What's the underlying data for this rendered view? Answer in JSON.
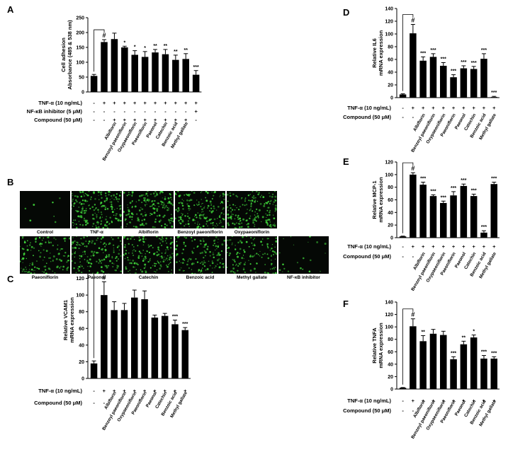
{
  "panels": {
    "A": "A",
    "B": "B",
    "C": "C",
    "D": "D",
    "E": "E",
    "F": "F"
  },
  "chart_data": [
    {
      "id": "A",
      "type": "bar",
      "ylabel": "Cell adhesion",
      "ylabel2": "Absorbance (485 & 538 nm)",
      "ylim": [
        0,
        250
      ],
      "yticks": [
        0,
        50,
        100,
        150,
        200,
        250
      ],
      "categories": [
        "",
        "",
        "Albiflorin",
        "Benzoyl paeoniflorin",
        "Oxypaeoniflorin",
        "Paeoniflorin",
        "Paeonol",
        "Catechin",
        "Benzoic acid",
        "Methyl gallate",
        ""
      ],
      "values": [
        54,
        168,
        178,
        150,
        125,
        118,
        133,
        127,
        108,
        111,
        58
      ],
      "errors": [
        5,
        8,
        20,
        4,
        14,
        18,
        10,
        16,
        16,
        18,
        14
      ],
      "stars": [
        "",
        "#",
        "",
        "*",
        "*",
        "*",
        "**",
        "**",
        "**",
        "**",
        "***"
      ],
      "rows": [
        {
          "label": "TNF-α (10 ng/mL)",
          "marks": [
            "-",
            "+",
            "+",
            "+",
            "+",
            "+",
            "+",
            "+",
            "+",
            "+",
            "+"
          ]
        },
        {
          "label": "NF-κB inhibitor (5 μM)",
          "marks": [
            "-",
            "-",
            "-",
            "-",
            "-",
            "-",
            "-",
            "-",
            "-",
            "-",
            "+"
          ]
        },
        {
          "label": "Compound (50 μM)",
          "marks": [
            "-",
            "-",
            "+",
            "+",
            "+",
            "+",
            "+",
            "+",
            "+",
            "+",
            "-"
          ]
        }
      ]
    },
    {
      "id": "C",
      "type": "bar",
      "ylabel": "Relative VCAM1",
      "ylabel2": "mRNA expression",
      "ylim": [
        0,
        140
      ],
      "yticks": [
        0,
        20,
        40,
        60,
        80,
        100,
        120,
        140
      ],
      "categories": [
        "",
        "",
        "Albiflorin",
        "Benzoyl paeoniflorin",
        "Oxypaeoniflorin",
        "Paeoniflorin",
        "Paeonol",
        "Catechin",
        "Benzoic acid",
        "Methyl gallate"
      ],
      "values": [
        18,
        100,
        82,
        82,
        97,
        95,
        73,
        75,
        65,
        58
      ],
      "errors": [
        3,
        16,
        10,
        8,
        9,
        10,
        3,
        3,
        5,
        3
      ],
      "stars": [
        "",
        "#",
        "",
        "",
        "",
        "",
        "",
        "",
        "***",
        "***"
      ],
      "rows": [
        {
          "label": "TNF-α (10 ng/mL)",
          "marks": [
            "-",
            "+",
            "+",
            "+",
            "+",
            "+",
            "+",
            "+",
            "+",
            "+"
          ]
        },
        {
          "label": "Compound (50 μM)",
          "marks": [
            "-",
            "-",
            "+",
            "+",
            "+",
            "+",
            "+",
            "+",
            "+",
            "+"
          ]
        }
      ]
    },
    {
      "id": "D",
      "type": "bar",
      "ylabel": "Relative IL6",
      "ylabel2": "mRNA expression",
      "ylim": [
        0,
        140
      ],
      "yticks": [
        0,
        20,
        40,
        60,
        80,
        100,
        120,
        140
      ],
      "categories": [
        "",
        "",
        "Albiflorin",
        "Benzoyl paeoniflorin",
        "Oxypaeoniflorin",
        "Paeoniflorin",
        "Paeonol",
        "Catechin",
        "Benzoic acid",
        "Methyl gallate"
      ],
      "values": [
        5,
        101,
        58,
        64,
        50,
        32,
        46,
        45,
        61,
        1
      ],
      "errors": [
        1,
        14,
        6,
        5,
        5,
        4,
        4,
        4,
        8,
        1
      ],
      "stars": [
        "",
        "#",
        "***",
        "***",
        "***",
        "***",
        "***",
        "***",
        "***",
        "***"
      ],
      "rows": [
        {
          "label": "TNF-α (10 ng/mL)",
          "marks": [
            "-",
            "+",
            "+",
            "+",
            "+",
            "+",
            "+",
            "+",
            "+",
            "+"
          ]
        },
        {
          "label": "Compound (50 μM)",
          "marks": [
            "-",
            "-",
            "+",
            "+",
            "+",
            "+",
            "+",
            "+",
            "+",
            "+"
          ]
        }
      ]
    },
    {
      "id": "E",
      "type": "bar",
      "ylabel": "Relative MCP-1",
      "ylabel2": "mRNA expression",
      "ylim": [
        0,
        120
      ],
      "yticks": [
        0,
        20,
        40,
        60,
        80,
        100,
        120
      ],
      "categories": [
        "",
        "",
        "Albiflorin",
        "Benzoyl paeoniflorin",
        "Oxypaeoniflorin",
        "Paeoniflorin",
        "Paeonol",
        "Catechin",
        "Benzoic acid",
        "Methyl gallate"
      ],
      "values": [
        2,
        100,
        84,
        66,
        55,
        67,
        82,
        66,
        8,
        85
      ],
      "errors": [
        0.5,
        3,
        4,
        2,
        3,
        6,
        3,
        3,
        3,
        3
      ],
      "stars": [
        "",
        "#",
        "***",
        "***",
        "***",
        "***",
        "***",
        "***",
        "***",
        "***"
      ],
      "rows": [
        {
          "label": "TNF-α (10 ng/mL)",
          "marks": [
            "-",
            "+",
            "+",
            "+",
            "+",
            "+",
            "+",
            "+",
            "+",
            "+"
          ]
        },
        {
          "label": "Compound (50 μM)",
          "marks": [
            "-",
            "-",
            "+",
            "+",
            "+",
            "+",
            "+",
            "+",
            "+",
            "+"
          ]
        }
      ]
    },
    {
      "id": "F",
      "type": "bar",
      "ylabel": "Relative TNFA",
      "ylabel2": "mRNA expression",
      "ylim": [
        0,
        140
      ],
      "yticks": [
        0,
        20,
        40,
        60,
        80,
        100,
        120,
        140
      ],
      "categories": [
        "",
        "",
        "Albiflorin",
        "Benzoyl paeoniflorin",
        "Oxypaeoniflorin",
        "Paeoniflorin",
        "Paeonol",
        "Catechin",
        "Benzoic acid",
        "Methyl gallate"
      ],
      "values": [
        2,
        101,
        77,
        89,
        87,
        48,
        72,
        83,
        49,
        49
      ],
      "errors": [
        0.5,
        12,
        9,
        7,
        6,
        4,
        5,
        4,
        5,
        3
      ],
      "stars": [
        "",
        "#",
        "**",
        "",
        "",
        "***",
        "**",
        "*",
        "***",
        "***"
      ],
      "rows": [
        {
          "label": "TNF-α (10 ng/mL)",
          "marks": [
            "-",
            "+",
            "+",
            "+",
            "+",
            "+",
            "+",
            "+",
            "+",
            "+"
          ]
        },
        {
          "label": "Compound (50 μM)",
          "marks": [
            "-",
            "-",
            "+",
            "+",
            "+",
            "+",
            "+",
            "+",
            "+",
            "+"
          ]
        }
      ]
    }
  ],
  "micrographs": [
    {
      "label": "Control",
      "density": 0.02
    },
    {
      "label": "TNF-α",
      "density": 0.95
    },
    {
      "label": "Albiflorin",
      "density": 0.85
    },
    {
      "label": "Benzoyl paeoniflorin",
      "density": 0.8
    },
    {
      "label": "Oxypaeoniflorin",
      "density": 0.75
    },
    {
      "label": "Paeoniflorin",
      "density": 0.6
    },
    {
      "label": "Paeonol",
      "density": 0.7
    },
    {
      "label": "Catechin",
      "density": 0.75
    },
    {
      "label": "Benzoic acid",
      "density": 0.6
    },
    {
      "label": "Methyl gallate",
      "density": 0.55
    },
    {
      "label": "NF-κB inhibitor",
      "density": 0.08
    }
  ],
  "colors": {
    "bar": "#000000",
    "cell_fluorescence": "#3fd33a",
    "micrograph_bg": "#050805"
  }
}
